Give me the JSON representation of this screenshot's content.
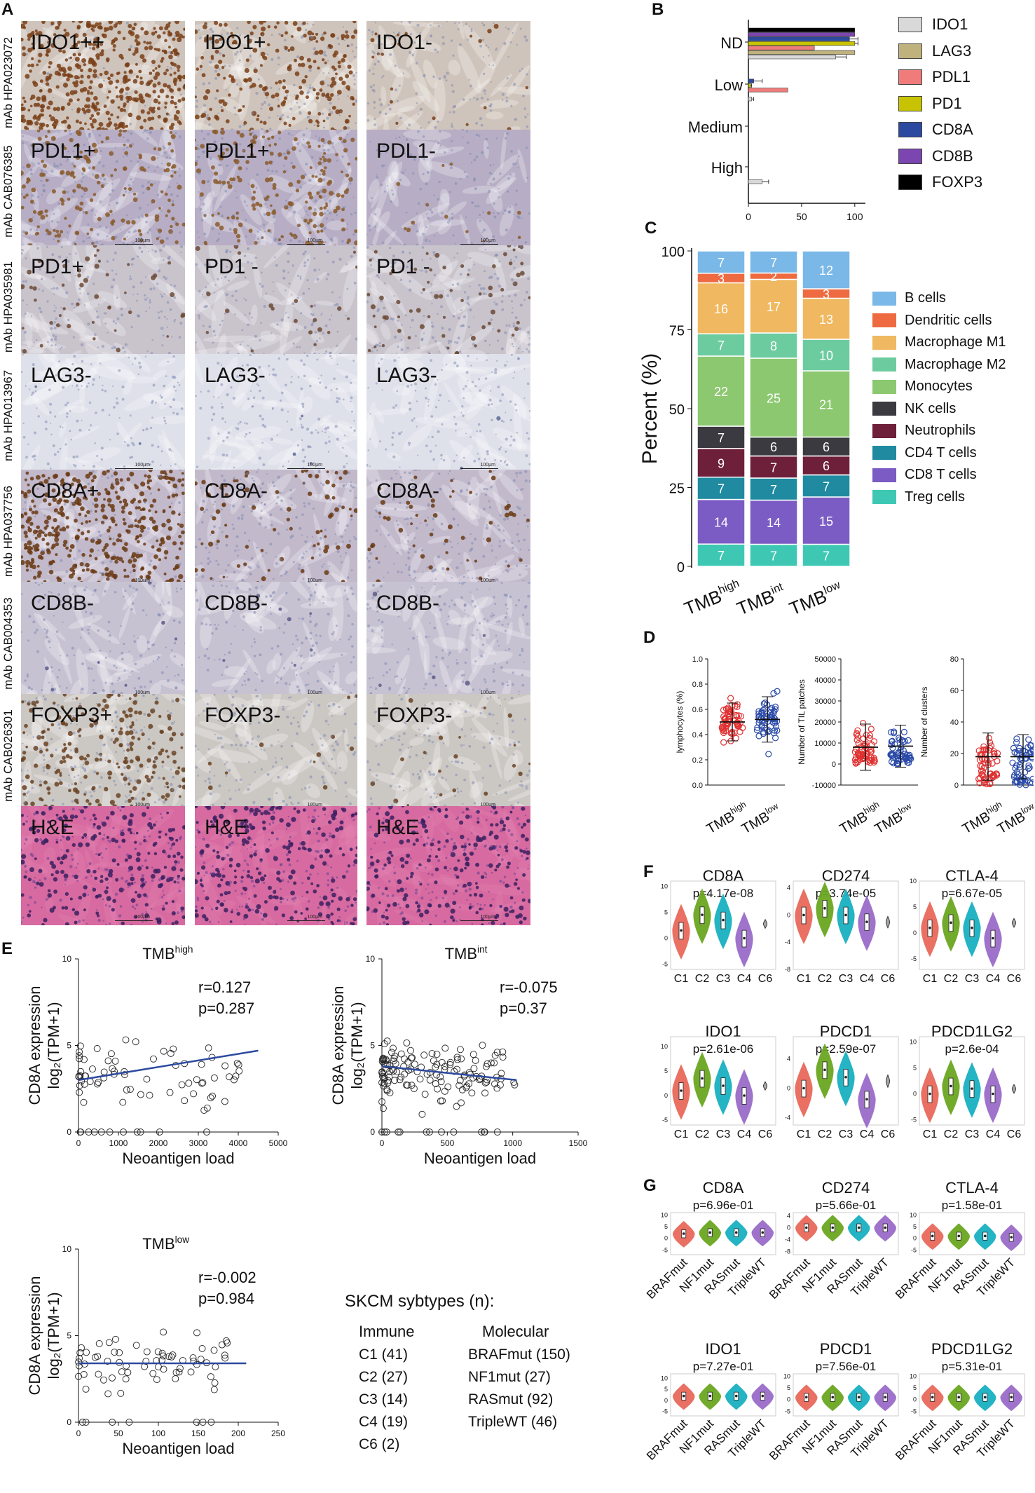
{
  "panel_letters": {
    "A": "A",
    "B": "B",
    "C": "C",
    "D": "D",
    "E": "E",
    "F": "F",
    "G": "G"
  },
  "colors": {
    "IDO1": "#d9d9d9",
    "LAG3": "#bfb27d",
    "PDL1": "#ef7b7b",
    "PD1": "#c8c300",
    "CD8A": "#2b4aa0",
    "CD8B": "#7b46b0",
    "FOXP3": "#000000"
  },
  "panelA": {
    "rows": [
      {
        "antibody": "mAb HPA023072",
        "tiles": [
          "IDO1++",
          "IDO1+",
          "IDO1-"
        ],
        "stain": "ido",
        "intensity": [
          0.9,
          0.6,
          0.1
        ]
      },
      {
        "antibody": "mAb CAB076385",
        "tiles": [
          "PDL1+",
          "PDL1+",
          "PDL1-"
        ],
        "stain": "pdl1",
        "intensity": [
          0.5,
          0.5,
          0.05
        ]
      },
      {
        "antibody": "mAb HPA035981",
        "tiles": [
          "PD1+",
          "PD1 -",
          "PD1 -"
        ],
        "stain": "pd1",
        "intensity": [
          0.2,
          0.1,
          0.25
        ]
      },
      {
        "antibody": "mAb HPA013967",
        "tiles": [
          "LAG3-",
          "LAG3-",
          "LAG3-"
        ],
        "stain": "lag3",
        "intensity": [
          0.02,
          0.02,
          0.02
        ]
      },
      {
        "antibody": "mAb HPA037756",
        "tiles": [
          "CD8A+",
          "CD8A-",
          "CD8A-"
        ],
        "stain": "cd8a",
        "intensity": [
          0.8,
          0.3,
          0.2
        ]
      },
      {
        "antibody": "mAb CAB004353",
        "tiles": [
          "CD8B-",
          "CD8B-",
          "CD8B-"
        ],
        "stain": "cd8b",
        "intensity": [
          0.05,
          0.05,
          0.05
        ]
      },
      {
        "antibody": "mAb CAB026301",
        "tiles": [
          "FOXP3+",
          "FOXP3-",
          "FOXP3-"
        ],
        "stain": "foxp3",
        "intensity": [
          0.55,
          0.05,
          0.05
        ]
      },
      {
        "antibody": "",
        "tiles": [
          "H&E",
          "H&E",
          "H&E"
        ],
        "stain": "he",
        "intensity": [
          0.5,
          0.5,
          0.5
        ]
      }
    ],
    "scale_text": "100µm"
  },
  "panelB": {
    "chart_data": {
      "type": "bar",
      "orientation": "horizontal",
      "categories": [
        "ND",
        "Low",
        "Medium",
        "High"
      ],
      "xticks": [
        0,
        50,
        100
      ],
      "xlim": [
        0,
        110
      ],
      "series": [
        {
          "name": "IDO1",
          "values": [
            82,
            3,
            0,
            13
          ],
          "err": [
            10,
            2,
            0,
            6
          ]
        },
        {
          "name": "LAG3",
          "values": [
            100,
            0,
            0,
            0
          ],
          "err": [
            0,
            0,
            0,
            0
          ]
        },
        {
          "name": "PDL1",
          "values": [
            62,
            37,
            0,
            0
          ],
          "err": [
            0,
            0,
            0,
            0
          ]
        },
        {
          "name": "PD1",
          "values": [
            100,
            2,
            0,
            0
          ],
          "err": [
            3,
            1,
            0,
            0
          ]
        },
        {
          "name": "CD8A",
          "values": [
            95,
            5,
            0,
            0
          ],
          "err": [
            8,
            8,
            0,
            0
          ]
        },
        {
          "name": "CD8B",
          "values": [
            100,
            0,
            0,
            0
          ],
          "err": [
            0,
            0,
            0,
            0
          ]
        },
        {
          "name": "FOXP3",
          "values": [
            100,
            0,
            0,
            0
          ],
          "err": [
            0,
            0,
            0,
            0
          ]
        }
      ]
    }
  },
  "panelC": {
    "chart_data": {
      "type": "bar",
      "stacked": true,
      "ylabel": "Percent (%)",
      "yticks": [
        0,
        25,
        50,
        75,
        100
      ],
      "categories": [
        {
          "base": "TMB",
          "sup": "high"
        },
        {
          "base": "TMB",
          "sup": "int"
        },
        {
          "base": "TMB",
          "sup": "low"
        }
      ],
      "series": [
        {
          "name": "Treg cells",
          "color": "#3ec8b4",
          "values": [
            7,
            7,
            7
          ],
          "labels": [
            "7",
            "7",
            "7"
          ]
        },
        {
          "name": "CD8 T cells",
          "color": "#7b5cc4",
          "values": [
            14,
            14,
            15
          ],
          "labels": [
            "14",
            "14",
            "15"
          ]
        },
        {
          "name": "CD4 T cells",
          "color": "#1f8aa0",
          "values": [
            7,
            7,
            7
          ],
          "labels": [
            "7",
            "7",
            "7"
          ]
        },
        {
          "name": "Neutrophils",
          "color": "#6e1f3a",
          "values": [
            9,
            7,
            6
          ],
          "labels": [
            "9",
            "7",
            "6"
          ]
        },
        {
          "name": "NK cells",
          "color": "#3a3a40",
          "values": [
            7,
            6,
            6
          ],
          "labels": [
            "7",
            "6",
            "6"
          ]
        },
        {
          "name": "Monocytes",
          "color": "#8cc870",
          "values": [
            22,
            25,
            21
          ],
          "labels": [
            "22",
            "25",
            "21"
          ]
        },
        {
          "name": "Macrophage M2",
          "color": "#6ccca0",
          "values": [
            7,
            8,
            10
          ],
          "labels": [
            "7",
            "8",
            "10"
          ]
        },
        {
          "name": "Macrophage M1",
          "color": "#f0b860",
          "values": [
            16,
            17,
            13
          ],
          "labels": [
            "16",
            "17",
            "13"
          ]
        },
        {
          "name": "Dendritic cells",
          "color": "#ee6a40",
          "values": [
            3,
            2,
            3
          ],
          "labels": [
            "3",
            "2",
            "3"
          ]
        },
        {
          "name": "B cells",
          "color": "#7ab8e8",
          "values": [
            7,
            7,
            12
          ],
          "labels": [
            "7",
            "7",
            "12"
          ]
        }
      ]
    }
  },
  "panelD": {
    "chart_data": [
      {
        "type": "scatter",
        "ylabel": "lymphocytes (%)",
        "yticks": [
          "0.0",
          "0.2",
          "0.4",
          "0.6",
          "0.8",
          "1.0"
        ],
        "ylim": [
          0,
          1
        ],
        "categories": [
          {
            "base": "TMB",
            "sup": "high"
          },
          {
            "base": "TMB",
            "sup": "low"
          }
        ],
        "mean": [
          0.5,
          0.52
        ],
        "sd": [
          0.15,
          0.18
        ],
        "n": [
          60,
          60
        ],
        "range": [
          [
            0.05,
            0.85
          ],
          [
            0.1,
            0.85
          ]
        ]
      },
      {
        "type": "scatter",
        "ylabel": "Number of TIL patches",
        "yticks": [
          "-10000",
          "0",
          "10000",
          "20000",
          "30000",
          "40000",
          "50000"
        ],
        "ylim": [
          -10000,
          50000
        ],
        "categories": [
          {
            "base": "TMB",
            "sup": "high"
          },
          {
            "base": "TMB",
            "sup": "low"
          }
        ],
        "mean": [
          8000,
          8500
        ],
        "sd": [
          11000,
          10000
        ],
        "n": [
          60,
          60
        ],
        "range": [
          [
            0,
            43000
          ],
          [
            0,
            45000
          ]
        ]
      },
      {
        "type": "scatter",
        "ylabel": "Number of clusters",
        "yticks": [
          "0",
          "20",
          "40",
          "60",
          "80"
        ],
        "ylim": [
          0,
          80
        ],
        "categories": [
          {
            "base": "TMB",
            "sup": "high"
          },
          {
            "base": "TMB",
            "sup": "low"
          }
        ],
        "mean": [
          18,
          18
        ],
        "sd": [
          15,
          14
        ],
        "n": [
          60,
          60
        ],
        "range": [
          [
            0,
            58
          ],
          [
            0,
            62
          ]
        ]
      }
    ],
    "colors": {
      "high": "#e03030",
      "low": "#2a4aa8"
    }
  },
  "panelE": {
    "chart_data": [
      {
        "type": "scatter",
        "title": {
          "base": "TMB",
          "sup": "high"
        },
        "r": "r=0.127",
        "p": "p=0.287",
        "xlabel": "Neoantigen load",
        "ylabel1": "CD8A expression",
        "ylabel2": "log₂(TPM+1)",
        "xticks": [
          0,
          1000,
          2000,
          3000,
          4000,
          5000
        ],
        "xlim": [
          0,
          5000
        ],
        "yticks": [
          0,
          5,
          10
        ],
        "ylim": [
          0,
          10
        ],
        "fit": [
          [
            0,
            3
          ],
          [
            4500,
            4.7
          ]
        ],
        "n": 80,
        "xmax_pts": 4500
      },
      {
        "type": "scatter",
        "title": {
          "base": "TMB",
          "sup": "int"
        },
        "r": "r=-0.075",
        "p": "p=0.37",
        "xlabel": "Neoantigen load",
        "ylabel1": "CD8A expression",
        "ylabel2": "log₂(TPM+1)",
        "xticks": [
          0,
          500,
          1000,
          1500
        ],
        "xlim": [
          0,
          1500
        ],
        "yticks": [
          0,
          5,
          10
        ],
        "ylim": [
          0,
          10
        ],
        "fit": [
          [
            0,
            3.8
          ],
          [
            1030,
            3
          ]
        ],
        "n": 150,
        "xmax_pts": 1030
      },
      {
        "type": "scatter",
        "title": {
          "base": "TMB",
          "sup": "low"
        },
        "r": "r=-0.002",
        "p": "p=0.984",
        "xlabel": "Neoantigen load",
        "ylabel1": "CD8A expression",
        "ylabel2": "log₂(TPM+1)",
        "xticks": [
          0,
          50,
          100,
          150,
          200,
          250
        ],
        "xlim": [
          0,
          250
        ],
        "yticks": [
          0,
          5,
          10
        ],
        "ylim": [
          0,
          10
        ],
        "fit": [
          [
            0,
            3.4
          ],
          [
            210,
            3.4
          ]
        ],
        "n": 75,
        "xmax_pts": 210
      }
    ],
    "subtypes": {
      "title": "SKCM sybtypes (n):",
      "immune_header": "Immune",
      "molecular_header": "Molecular",
      "immune": [
        "C1 (41)",
        "C2 (27)",
        "C3 (14)",
        "C4 (19)",
        "C6 (2)"
      ],
      "molecular": [
        "BRAFmut (150)",
        "NF1mut (27)",
        "RASmut (92)",
        "TripleWT (46)"
      ]
    }
  },
  "panelF": {
    "chart_data": [
      {
        "type": "violin",
        "title": "CD8A",
        "p": "p=4.17e-08",
        "groups": [
          "C1",
          "C2",
          "C3",
          "C4",
          "C6"
        ],
        "yticks": [
          "10",
          "5",
          "0",
          "-5"
        ],
        "ylim": [
          -6,
          11
        ],
        "medians": [
          1.5,
          4.5,
          3.5,
          0,
          2.8
        ]
      },
      {
        "type": "violin",
        "title": "CD274",
        "p": "p=3.74e-05",
        "groups": [
          "C1",
          "C2",
          "C3",
          "C4",
          "C6"
        ],
        "yticks": [
          "4",
          "0",
          "-4",
          "-8"
        ],
        "ylim": [
          -8,
          5
        ],
        "medians": [
          0,
          1,
          0,
          -1,
          -1
        ]
      },
      {
        "type": "violin",
        "title": "CTLA-4",
        "p": "p=6.67e-05",
        "groups": [
          "C1",
          "C2",
          "C3",
          "C4",
          "C6"
        ],
        "yticks": [
          "10",
          "5",
          "0",
          "-5"
        ],
        "ylim": [
          -7,
          10
        ],
        "medians": [
          1,
          2,
          1,
          -1,
          2
        ]
      },
      {
        "type": "violin",
        "title": "IDO1",
        "p": "p=2.61e-06",
        "groups": [
          "C1",
          "C2",
          "C3",
          "C4",
          "C6"
        ],
        "yticks": [
          "10",
          "5",
          "0",
          "-5"
        ],
        "ylim": [
          -6,
          12
        ],
        "medians": [
          1,
          3.5,
          2,
          0,
          2
        ]
      },
      {
        "type": "violin",
        "title": "PDCD1",
        "p": "p=2.59e-07",
        "groups": [
          "C1",
          "C2",
          "C3",
          "C4",
          "C6"
        ],
        "yticks": [
          "4",
          "0",
          "-4"
        ],
        "ylim": [
          -5,
          7
        ],
        "medians": [
          0,
          2.5,
          1.5,
          -1.5,
          1
        ]
      },
      {
        "type": "violin",
        "title": "PDCD1LG2",
        "p": "p=2.6e-04",
        "groups": [
          "C1",
          "C2",
          "C3",
          "C4",
          "C6"
        ],
        "yticks": [
          "10",
          "5",
          "0",
          "-5"
        ],
        "ylim": [
          -6,
          11
        ],
        "medians": [
          0,
          1.5,
          1,
          0,
          1
        ]
      }
    ],
    "colors": [
      "#e8685a",
      "#6aa620",
      "#18b0c0",
      "#9a6cc8",
      "#aaaaaa"
    ]
  },
  "panelG": {
    "chart_data": [
      {
        "type": "violin",
        "title": "CD8A",
        "p": "p=6.96e-01",
        "groups": [
          "BRAFmut",
          "NF1mut",
          "RASmut",
          "TripleWT"
        ],
        "yticks": [
          "10",
          "5",
          "0",
          "-5"
        ],
        "ylim": [
          -7,
          11
        ],
        "medians": [
          2,
          2.5,
          2.5,
          2.5
        ]
      },
      {
        "type": "violin",
        "title": "CD274",
        "p": "p=5.66e-01",
        "groups": [
          "BRAFmut",
          "NF1mut",
          "RASmut",
          "TripleWT"
        ],
        "yticks": [
          "4",
          "0",
          "-4",
          "-8"
        ],
        "ylim": [
          -9,
          5
        ],
        "medians": [
          0,
          0,
          0,
          0
        ]
      },
      {
        "type": "violin",
        "title": "CTLA-4",
        "p": "p=1.58e-01",
        "groups": [
          "BRAFmut",
          "NF1mut",
          "RASmut",
          "TripleWT"
        ],
        "yticks": [
          "10",
          "5",
          "0",
          "-5"
        ],
        "ylim": [
          -7,
          11
        ],
        "medians": [
          1,
          1,
          1,
          0.5
        ]
      },
      {
        "type": "violin",
        "title": "IDO1",
        "p": "p=7.27e-01",
        "groups": [
          "BRAFmut",
          "NF1mut",
          "RASmut",
          "TripleWT"
        ],
        "yticks": [
          "10",
          "5",
          "0",
          "-5"
        ],
        "ylim": [
          -7,
          12
        ],
        "medians": [
          2,
          2,
          2,
          2
        ]
      },
      {
        "type": "violin",
        "title": "PDCD1",
        "p": "p=7.56e-01",
        "groups": [
          "BRAFmut",
          "NF1mut",
          "RASmut",
          "TripleWT"
        ],
        "yticks": [
          "10",
          "5",
          "0",
          "-5"
        ],
        "ylim": [
          -7,
          11
        ],
        "medians": [
          1,
          1,
          1,
          1
        ]
      },
      {
        "type": "violin",
        "title": "PDCD1LG2",
        "p": "p=5.31e-01",
        "groups": [
          "BRAFmut",
          "NF1mut",
          "RASmut",
          "TripleWT"
        ],
        "yticks": [
          "10",
          "5",
          "0",
          "-5"
        ],
        "ylim": [
          -7,
          11
        ],
        "medians": [
          1,
          1,
          1,
          1
        ]
      }
    ],
    "colors": [
      "#e8685a",
      "#6aa620",
      "#18b0c0",
      "#9a6cc8"
    ]
  }
}
